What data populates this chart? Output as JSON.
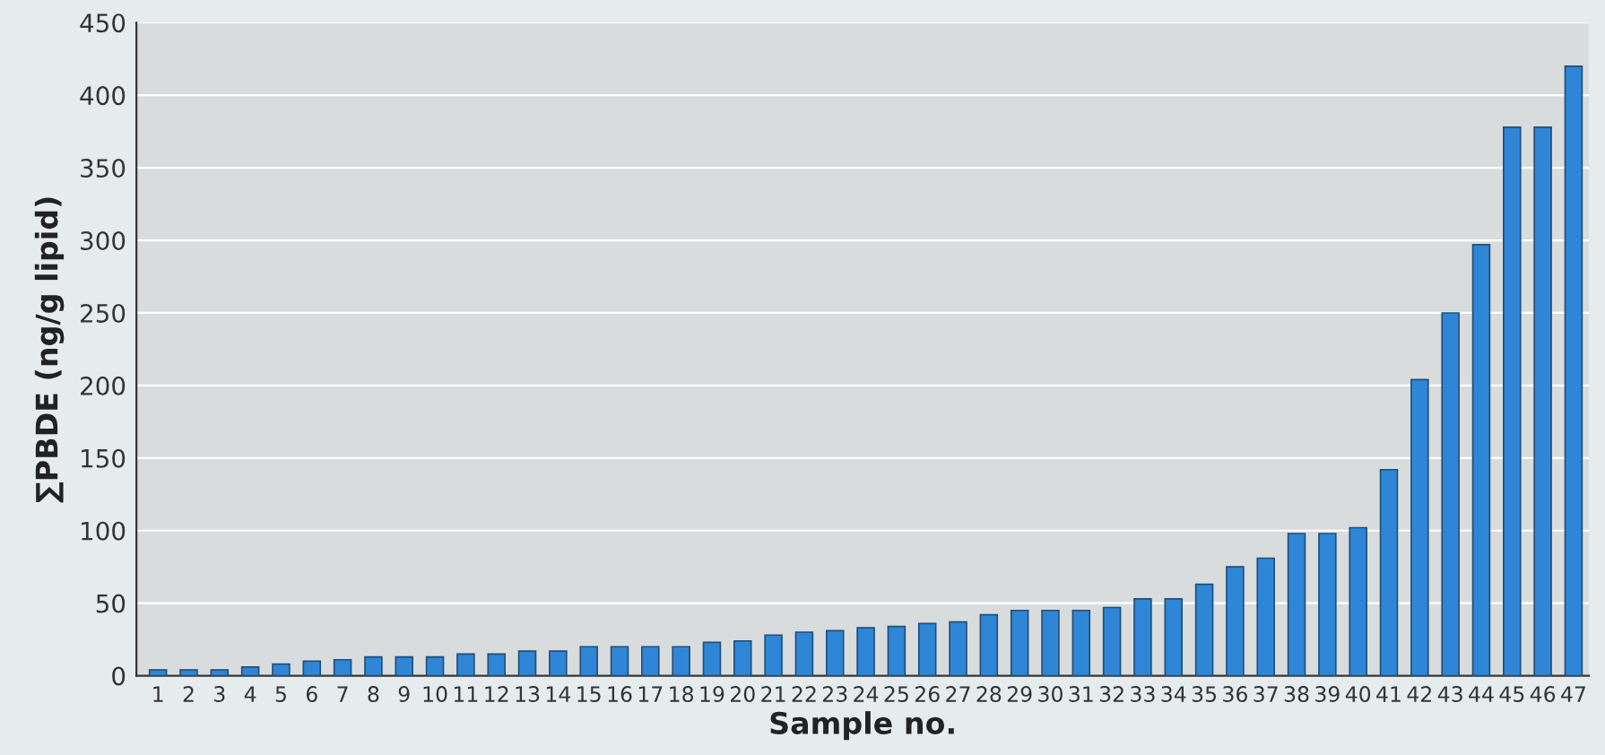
{
  "chart_data": {
    "type": "bar",
    "xlabel": "Sample no.",
    "ylabel": "∑PBDE (ng/g lipid)",
    "categories": [
      "1",
      "2",
      "3",
      "4",
      "5",
      "6",
      "7",
      "8",
      "9",
      "10",
      "11",
      "12",
      "13",
      "14",
      "15",
      "16",
      "17",
      "18",
      "19",
      "20",
      "21",
      "22",
      "23",
      "24",
      "25",
      "26",
      "27",
      "28",
      "29",
      "30",
      "31",
      "32",
      "33",
      "34",
      "35",
      "36",
      "37",
      "38",
      "39",
      "40",
      "41",
      "42",
      "43",
      "44",
      "45",
      "46",
      "47"
    ],
    "values": [
      4,
      4,
      4,
      6,
      8,
      10,
      11,
      13,
      13,
      13,
      15,
      15,
      17,
      17,
      20,
      20,
      20,
      20,
      23,
      24,
      28,
      30,
      31,
      33,
      34,
      36,
      37,
      42,
      45,
      45,
      45,
      47,
      53,
      53,
      63,
      75,
      81,
      98,
      98,
      102,
      142,
      204,
      250,
      297,
      378,
      378,
      420
    ],
    "color": "#2f86d6",
    "ylim": [
      0,
      450
    ],
    "yticks": [
      0,
      50,
      100,
      150,
      200,
      250,
      300,
      350,
      400,
      450
    ],
    "grid": "y"
  }
}
